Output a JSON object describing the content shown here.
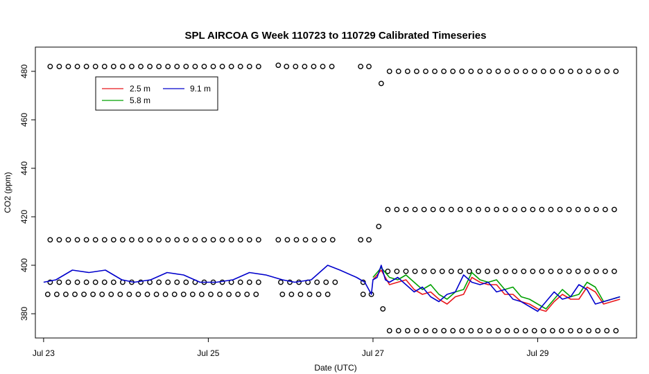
{
  "chart_data": {
    "type": "line",
    "title": "SPL AIRCOA G  Week 110723 to 110729  Calibrated Timeseries",
    "xlabel": "Date (UTC)",
    "ylabel": "CO2 (ppm)",
    "xlim": [
      -0.1,
      7.2
    ],
    "ylim": [
      370,
      490
    ],
    "x_ticks": [
      {
        "value": 0,
        "label": "Jul 23"
      },
      {
        "value": 2,
        "label": "Jul 25"
      },
      {
        "value": 4,
        "label": "Jul 27"
      },
      {
        "value": 6,
        "label": "Jul 29"
      }
    ],
    "y_ticks": [
      {
        "value": 380,
        "label": "380"
      },
      {
        "value": 400,
        "label": "400"
      },
      {
        "value": 420,
        "label": "420"
      },
      {
        "value": 440,
        "label": "440"
      },
      {
        "value": 460,
        "label": "460"
      },
      {
        "value": 480,
        "label": "480"
      }
    ],
    "x_unit_note": "x values are days from Jul 23 00:00 UTC",
    "legend": {
      "position": "top-left",
      "entries": [
        {
          "label": "2.5 m",
          "color": "#e8161b"
        },
        {
          "label": "9.1 m",
          "color": "#0000cc"
        },
        {
          "label": "5.8 m",
          "color": "#00a000"
        }
      ]
    },
    "series": [
      {
        "name": "9.1 m",
        "color": "#0000cc",
        "x": [
          0,
          0.15,
          0.35,
          0.55,
          0.75,
          0.95,
          1.1,
          1.3,
          1.5,
          1.7,
          1.9,
          2.1,
          2.3,
          2.5,
          2.7,
          2.9,
          3.05,
          3.25,
          3.45,
          3.6,
          3.8,
          3.9,
          3.98,
          4.0,
          4.05,
          4.1,
          4.15,
          4.2,
          4.3,
          4.4,
          4.5,
          4.6,
          4.7,
          4.8,
          4.9,
          5.0,
          5.1,
          5.2,
          5.3,
          5.4,
          5.5,
          5.6,
          5.7,
          5.8,
          5.9,
          6.0,
          6.1,
          6.2,
          6.3,
          6.4,
          6.5,
          6.6,
          6.7,
          6.8,
          6.9,
          7.0
        ],
        "y": [
          393,
          394,
          398,
          397,
          398,
          394,
          393,
          394,
          397,
          396,
          393,
          393,
          394,
          397,
          396,
          394,
          393,
          394,
          400,
          398,
          395,
          393,
          388,
          394,
          395,
          400,
          394,
          393,
          395,
          392,
          389,
          391,
          387,
          385,
          388,
          389,
          396,
          393,
          392,
          393,
          389,
          390,
          386,
          385,
          383,
          381,
          385,
          389,
          386,
          387,
          392,
          390,
          384,
          385,
          386,
          387
        ]
      },
      {
        "name": "5.8 m",
        "color": "#00a000",
        "x": [
          4.0,
          4.1,
          4.2,
          4.3,
          4.4,
          4.5,
          4.6,
          4.7,
          4.8,
          4.9,
          5.0,
          5.1,
          5.2,
          5.3,
          5.4,
          5.5,
          5.6,
          5.7,
          5.8,
          5.9,
          6.0,
          6.1,
          6.2,
          6.3,
          6.4,
          6.5,
          6.6,
          6.7,
          6.8,
          6.9,
          7.0
        ],
        "y": [
          395,
          399,
          395,
          394,
          396,
          393,
          390,
          392,
          388,
          386,
          389,
          390,
          397,
          394,
          393,
          394,
          390,
          391,
          387,
          386,
          384,
          382,
          386,
          390,
          387,
          388,
          393,
          391,
          385,
          386,
          387
        ]
      },
      {
        "name": "2.5 m",
        "color": "#e8161b",
        "x": [
          4.0,
          4.1,
          4.2,
          4.3,
          4.4,
          4.5,
          4.6,
          4.7,
          4.8,
          4.9,
          5.0,
          5.1,
          5.2,
          5.3,
          5.4,
          5.5,
          5.6,
          5.7,
          5.8,
          5.9,
          6.0,
          6.1,
          6.2,
          6.3,
          6.4,
          6.5,
          6.6,
          6.7,
          6.8,
          6.9,
          7.0
        ],
        "y": [
          394,
          398,
          392,
          393,
          394,
          390,
          388,
          389,
          386,
          384,
          387,
          388,
          395,
          393,
          392,
          392,
          388,
          388,
          385,
          384,
          382,
          381,
          385,
          388,
          386,
          386,
          391,
          389,
          384,
          385,
          386
        ]
      }
    ],
    "calibration_points": [
      {
        "level": 482,
        "x_start": 0.08,
        "x_end": 2.65,
        "step": 0.11
      },
      {
        "level": 482.5,
        "x_start": 2.85,
        "x_end": 2.85,
        "step": 1
      },
      {
        "level": 482,
        "x_start": 2.95,
        "x_end": 3.55,
        "step": 0.11
      },
      {
        "level": 482,
        "x_start": 3.85,
        "x_end": 3.95,
        "step": 0.1
      },
      {
        "level": 480,
        "x_start": 4.2,
        "x_end": 7.0,
        "step": 0.11
      },
      {
        "level": 475,
        "x_start": 4.1,
        "x_end": 4.1,
        "step": 1
      },
      {
        "level": 423,
        "x_start": 4.18,
        "x_end": 7.0,
        "step": 0.11
      },
      {
        "level": 416,
        "x_start": 4.07,
        "x_end": 4.07,
        "step": 1
      },
      {
        "level": 410.5,
        "x_start": 0.08,
        "x_end": 2.65,
        "step": 0.11
      },
      {
        "level": 410.5,
        "x_start": 2.85,
        "x_end": 3.55,
        "step": 0.11
      },
      {
        "level": 410.5,
        "x_start": 3.85,
        "x_end": 3.95,
        "step": 0.1
      },
      {
        "level": 397.5,
        "x_start": 4.18,
        "x_end": 7.0,
        "step": 0.11
      },
      {
        "level": 393,
        "x_start": 0.08,
        "x_end": 2.65,
        "step": 0.11
      },
      {
        "level": 393,
        "x_start": 2.88,
        "x_end": 3.55,
        "step": 0.11
      },
      {
        "level": 393,
        "x_start": 3.88,
        "x_end": 3.88,
        "step": 1
      },
      {
        "level": 388,
        "x_start": 0.05,
        "x_end": 2.65,
        "step": 0.11
      },
      {
        "level": 388,
        "x_start": 2.9,
        "x_end": 3.55,
        "step": 0.11
      },
      {
        "level": 388,
        "x_start": 3.88,
        "x_end": 3.98,
        "step": 0.1
      },
      {
        "level": 382,
        "x_start": 4.12,
        "x_end": 4.12,
        "step": 1
      },
      {
        "level": 373,
        "x_start": 4.2,
        "x_end": 7.0,
        "step": 0.11
      }
    ]
  }
}
